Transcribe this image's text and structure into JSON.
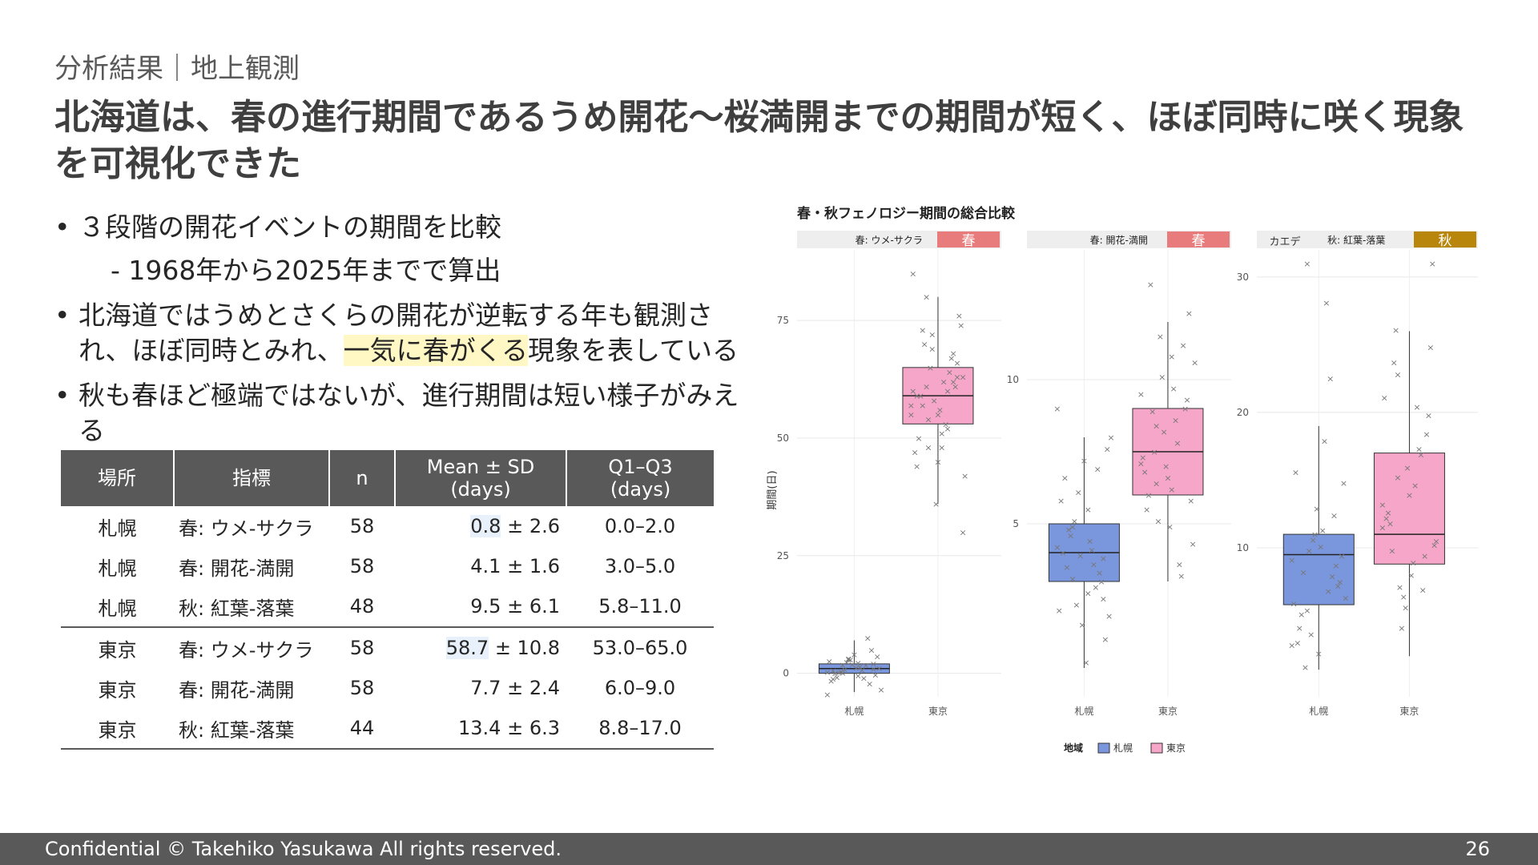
{
  "header": {
    "breadcrumb": "分析結果｜地上観測",
    "title": "北海道は、春の進行期間であるうめ開花〜桜満開までの期間が短く、ほぼ同時に咲く現象を可視化できた"
  },
  "bullets": {
    "b1": "３段階の開花イベントの期間を比較",
    "b1_sub": "- 1968年から2025年までで算出",
    "b2_pre": "北海道ではうめとさくらの開花が逆転する年も観測され、ほぼ同時とみれ、",
    "b2_hl": "一気に春がくる",
    "b2_post": "現象を表している",
    "b3": "秋も春ほど極端ではないが、進行期間は短い様子がみえる"
  },
  "table": {
    "headers": [
      "場所",
      "指標",
      "n",
      "Mean ± SD\n(days)",
      "Q1–Q3\n(days)"
    ],
    "rows": [
      {
        "place": "札幌",
        "metric": "春: ウメ-サクラ",
        "n": "58",
        "mean": "0.8",
        "sd": " ± 2.6",
        "q": "0.0–2.0"
      },
      {
        "place": "札幌",
        "metric": "春: 開花-満開",
        "n": "58",
        "mean": "4.1",
        "sd": " ± 1.6",
        "q": "3.0–5.0"
      },
      {
        "place": "札幌",
        "metric": "秋: 紅葉-落葉",
        "n": "48",
        "mean": "9.5",
        "sd": " ± 6.1",
        "q": "5.8–11.0"
      },
      {
        "place": "東京",
        "metric": "春: ウメ-サクラ",
        "n": "58",
        "mean": "58.7",
        "sd": " ± 10.8",
        "q": "53.0–65.0"
      },
      {
        "place": "東京",
        "metric": "春: 開花-満開",
        "n": "58",
        "mean": "7.7",
        "sd": " ± 2.4",
        "q": "6.0–9.0"
      },
      {
        "place": "東京",
        "metric": "秋: 紅葉-落葉",
        "n": "44",
        "mean": "13.4",
        "sd": " ± 6.3",
        "q": "8.8–17.0"
      }
    ]
  },
  "footer": {
    "left": "Confidential  © Takehiko Yasukawa  All rights reserved.",
    "page": "26"
  },
  "colors": {
    "sapporo": "#7a96dc",
    "tokyo": "#f6a6c8",
    "spring_tag": "#e87c7c",
    "autumn_tag": "#b8860b"
  },
  "chart_data": {
    "type": "box",
    "title": "春・秋フェノロジー期間の総合比較",
    "ylabel": "期間(日)",
    "categories": [
      "札幌",
      "東京"
    ],
    "legend": {
      "title": "地域",
      "entries": [
        "札幌",
        "東京"
      ],
      "placement": "bottom"
    },
    "grid": true,
    "panels": [
      {
        "strip": "春: ウメ-サクラ",
        "tag": "春",
        "tag_color": "#e87c7c",
        "extra": "",
        "ylim": [
          -5,
          90
        ],
        "yticks": [
          0,
          25,
          50,
          75
        ],
        "boxes": [
          {
            "region": "札幌",
            "q1": 0.0,
            "median": 1.0,
            "q3": 2.0,
            "whisker_low": -4,
            "whisker_high": 7
          },
          {
            "region": "東京",
            "q1": 53.0,
            "median": 59.0,
            "q3": 65.0,
            "whisker_low": 36,
            "whisker_high": 80
          }
        ],
        "points": [
          [
            0.3,
            1.8,
            -0.5,
            2.1,
            0.6,
            3.2,
            -1.0,
            1.1,
            0.2,
            4.0,
            -2.2,
            2.6,
            0.9,
            1.4,
            -0.3,
            0.0,
            2.9,
            1.7,
            -3.5,
            0.4,
            1.2,
            5.0,
            -1.6,
            2.4,
            0.7,
            3.6,
            -0.8,
            1.9,
            7.5,
            -4.5,
            0.1,
            2.2,
            1.0,
            -1.2,
            3.0
          ],
          [
            55,
            61,
            48,
            66,
            59,
            72,
            52,
            63,
            57,
            45,
            68,
            60,
            54,
            62,
            76,
            50,
            58,
            64,
            42,
            70,
            56,
            61,
            47,
            65,
            53,
            74,
            59,
            36,
            67,
            57,
            80,
            51,
            63,
            44,
            69,
            60,
            30,
            73,
            55,
            62,
            85,
            48
          ]
        ]
      },
      {
        "strip": "春: 開花-満開",
        "tag": "春",
        "tag_color": "#e87c7c",
        "extra": "",
        "ylim": [
          -1,
          14.5
        ],
        "yticks": [
          5,
          10
        ],
        "boxes": [
          {
            "region": "札幌",
            "q1": 3.0,
            "median": 4.0,
            "q3": 5.0,
            "whisker_low": 0,
            "whisker_high": 8
          },
          {
            "region": "東京",
            "q1": 6.0,
            "median": 7.5,
            "q3": 9.0,
            "whisker_low": 3,
            "whisker_high": 12
          }
        ],
        "points": [
          [
            4.2,
            3.1,
            5.5,
            2.4,
            4.0,
            6.1,
            3.6,
            1.8,
            4.8,
            7.2,
            3.3,
            2.0,
            5.1,
            4.4,
            1.0,
            6.6,
            3.9,
            2.8,
            8.0,
            4.6,
            0.2,
            3.0,
            5.8,
            2.2,
            4.1,
            7.6,
            3.5,
            1.5,
            6.9,
            9.0,
            4.9,
            2.6,
            3.8
          ],
          [
            7.1,
            8.4,
            6.2,
            9.3,
            5.5,
            10.1,
            7.8,
            4.3,
            8.9,
            6.6,
            11.2,
            7.3,
            5.1,
            9.7,
            12.3,
            6.0,
            8.2,
            3.6,
            10.6,
            7.5,
            4.9,
            9.0,
            6.8,
            11.5,
            8.6,
            5.8,
            13.3,
            7.0,
            3.2,
            9.5,
            6.4,
            10.8
          ]
        ]
      },
      {
        "strip": "秋: 紅葉-落葉",
        "tag": "秋",
        "tag_color": "#b8860b",
        "extra": "カエデ",
        "ylim": [
          -1,
          32
        ],
        "yticks": [
          10,
          20,
          30
        ],
        "boxes": [
          {
            "region": "札幌",
            "q1": 5.8,
            "median": 9.5,
            "q3": 11.0,
            "whisker_low": 1,
            "whisker_high": 19
          },
          {
            "region": "東京",
            "q1": 8.8,
            "median": 11.0,
            "q3": 17.0,
            "whisker_low": 2,
            "whisker_high": 26
          }
        ],
        "points": [
          [
            9.1,
            5.4,
            11.3,
            7.2,
            3.0,
            10.6,
            6.8,
            14.8,
            8.2,
            2.2,
            12.4,
            5.9,
            9.8,
            17.9,
            7.5,
            4.1,
            11.0,
            22.5,
            6.3,
            1.2,
            10.1,
            8.7,
            15.6,
            3.6,
            28.1,
            9.4,
            5.1,
            12.9,
            7.9,
            2.8,
            31.0
          ],
          [
            11.5,
            15.2,
            8.9,
            19.8,
            12.6,
            6.4,
            17.3,
            10.2,
            23.7,
            13.9,
            9.4,
            21.1,
            7.1,
            14.6,
            24.8,
            11.8,
            5.6,
            16.9,
            10.5,
            26.1,
            8.0,
            18.4,
            12.2,
            4.1,
            20.4,
            31.0,
            9.8,
            15.9,
            6.9,
            13.2,
            22.8
          ]
        ]
      }
    ]
  }
}
